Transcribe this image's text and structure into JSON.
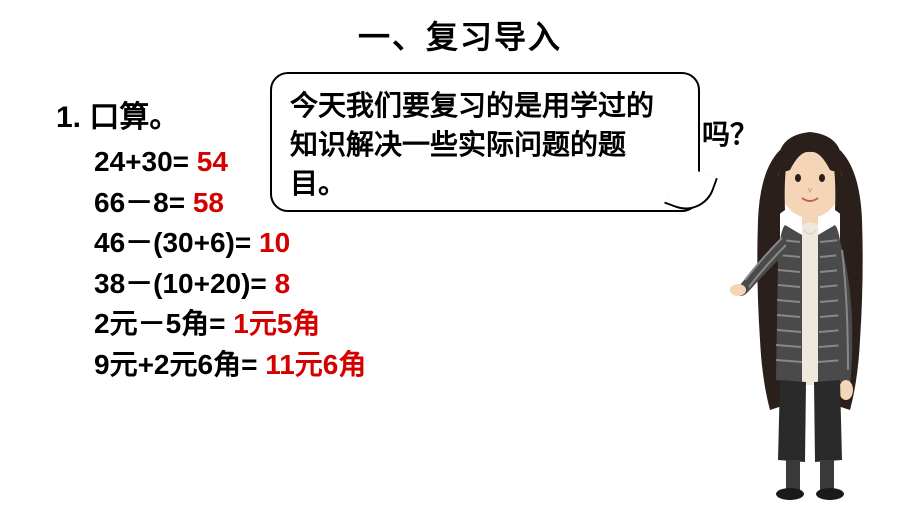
{
  "title": "一、复习导入",
  "section_label": "1. 口算。",
  "equations": [
    {
      "expr": "24+30= ",
      "ans": "54"
    },
    {
      "expr": "66－8= ",
      "ans": "58"
    },
    {
      "expr": "46－(30+6)= ",
      "ans": "10"
    },
    {
      "expr": "38－(10+20)= ",
      "ans": "8"
    },
    {
      "expr": "2元－5角= ",
      "ans": "1元5角"
    },
    {
      "expr": "9元+2元6角= ",
      "ans": "11元6角"
    }
  ],
  "speech_bubble": "今天我们要复习的是用学过的知识解决一些实际问题的题目。",
  "partial_text": "吗？",
  "colors": {
    "answer": "#d40000",
    "text": "#000000",
    "background": "#ffffff"
  },
  "fonts": {
    "title_size": 32,
    "body_size": 28,
    "section_size": 30
  }
}
